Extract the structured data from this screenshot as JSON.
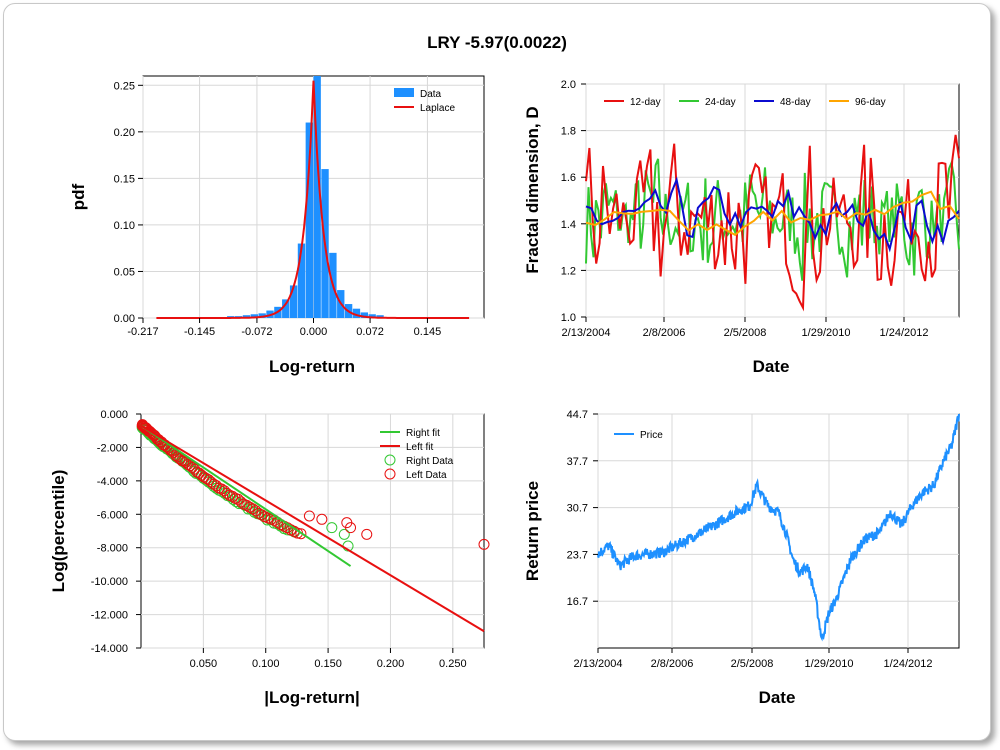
{
  "title": "LRY -5.97(0.0022)",
  "colors": {
    "blue": "#1e90ff",
    "red": "#e81010",
    "green": "#32c832",
    "navy": "#0b0bd0",
    "orange": "#ffa500"
  },
  "chart_data": [
    {
      "id": "pdf",
      "type": "bar",
      "xlabel": "Log-return",
      "ylabel": "pdf",
      "x_ticks": [
        "-0.217",
        "-0.145",
        "-0.072",
        "0.000",
        "0.072",
        "0.145"
      ],
      "y_ticks": [
        "0.00",
        "0.05",
        "0.10",
        "0.15",
        "0.20",
        "0.25"
      ],
      "xlim": [
        -0.217,
        0.217
      ],
      "ylim": [
        0,
        0.26
      ],
      "legend": [
        "Data",
        "Laplace"
      ],
      "bins_x": [
        -0.125,
        -0.115,
        -0.105,
        -0.095,
        -0.085,
        -0.075,
        -0.065,
        -0.055,
        -0.045,
        -0.035,
        -0.025,
        -0.015,
        -0.005,
        0.005,
        0.015,
        0.025,
        0.035,
        0.045,
        0.055,
        0.065,
        0.075,
        0.085
      ],
      "bins_y": [
        0.001,
        0.001,
        0.002,
        0.002,
        0.003,
        0.004,
        0.005,
        0.008,
        0.012,
        0.02,
        0.035,
        0.08,
        0.21,
        0.26,
        0.16,
        0.07,
        0.03,
        0.015,
        0.01,
        0.006,
        0.004,
        0.003
      ]
    },
    {
      "id": "fractal",
      "type": "line",
      "xlabel": "Date",
      "ylabel": "Fractal dimension, D",
      "x_ticks": [
        "2/13/2004",
        "2/8/2006",
        "2/5/2008",
        "1/29/2010",
        "1/24/2012"
      ],
      "y_ticks": [
        "1.0",
        "1.2",
        "1.4",
        "1.6",
        "1.8",
        "2.0"
      ],
      "ylim": [
        1.0,
        2.0
      ],
      "series": [
        "12-day",
        "24-day",
        "48-day",
        "96-day"
      ]
    },
    {
      "id": "tail",
      "type": "scatter",
      "xlabel": "|Log-return|",
      "ylabel": "Log(percentile)",
      "x_ticks": [
        "0.050",
        "0.100",
        "0.150",
        "0.200",
        "0.250"
      ],
      "y_ticks": [
        "0.000",
        "-2.000",
        "-4.000",
        "-6.000",
        "-8.000",
        "-10.000",
        "-12.000",
        "-14.000"
      ],
      "xlim": [
        0,
        0.275
      ],
      "ylim": [
        -14,
        0
      ],
      "legend": [
        "Right fit",
        "Left fit",
        "Right Data",
        "Left Data"
      ],
      "right_fit": [
        [
          0,
          -0.7
        ],
        [
          0.168,
          -9.1
        ]
      ],
      "left_fit": [
        [
          0,
          -0.7
        ],
        [
          0.275,
          -13.0
        ]
      ],
      "right_data_tail": [
        [
          0.153,
          -6.8
        ],
        [
          0.163,
          -7.2
        ],
        [
          0.166,
          -7.9
        ]
      ],
      "left_data_tail": [
        [
          0.135,
          -6.1
        ],
        [
          0.145,
          -6.3
        ],
        [
          0.165,
          -6.5
        ],
        [
          0.168,
          -6.8
        ],
        [
          0.181,
          -7.2
        ],
        [
          0.275,
          -7.8
        ]
      ]
    },
    {
      "id": "price",
      "type": "line",
      "xlabel": "Date",
      "ylabel": "Return price",
      "x_ticks": [
        "2/13/2004",
        "2/8/2006",
        "2/5/2008",
        "1/29/2010",
        "1/24/2012"
      ],
      "y_ticks": [
        "16.7",
        "23.7",
        "30.7",
        "37.7",
        "44.7"
      ],
      "ylim": [
        9.7,
        44.7
      ],
      "legend": [
        "Price"
      ],
      "anchors": [
        [
          0,
          23.8
        ],
        [
          0.03,
          25
        ],
        [
          0.06,
          22
        ],
        [
          0.1,
          23.5
        ],
        [
          0.18,
          24
        ],
        [
          0.25,
          26
        ],
        [
          0.32,
          28
        ],
        [
          0.38,
          30
        ],
        [
          0.42,
          31
        ],
        [
          0.44,
          34
        ],
        [
          0.47,
          31
        ],
        [
          0.5,
          30
        ],
        [
          0.52,
          27
        ],
        [
          0.54,
          23
        ],
        [
          0.56,
          21
        ],
        [
          0.58,
          22
        ],
        [
          0.6,
          18
        ],
        [
          0.62,
          11
        ],
        [
          0.64,
          15
        ],
        [
          0.66,
          17
        ],
        [
          0.7,
          23
        ],
        [
          0.74,
          26
        ],
        [
          0.78,
          27
        ],
        [
          0.81,
          30
        ],
        [
          0.84,
          28
        ],
        [
          0.87,
          31
        ],
        [
          0.9,
          33
        ],
        [
          0.93,
          34
        ],
        [
          0.96,
          38
        ],
        [
          0.98,
          40
        ],
        [
          1.0,
          44.7
        ]
      ]
    }
  ]
}
